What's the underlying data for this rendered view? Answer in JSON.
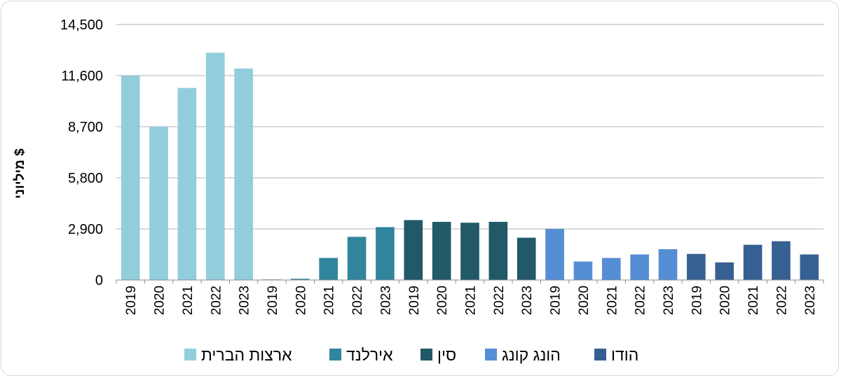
{
  "chart_data": {
    "type": "bar",
    "title": "",
    "xlabel": "",
    "ylabel": "מיליוני $",
    "ylim": [
      0,
      14500
    ],
    "yticks": [
      0,
      2900,
      5800,
      8700,
      11600,
      14500
    ],
    "ytick_labels": [
      "0",
      "2,900",
      "5,800",
      "8,700",
      "11,600",
      "14,500"
    ],
    "grid": true,
    "legend_position": "bottom",
    "categories": [
      "2019",
      "2020",
      "2021",
      "2022",
      "2023"
    ],
    "series": [
      {
        "name": "ארצות הברית",
        "color": "#92CDDC",
        "values": [
          11600,
          8700,
          10900,
          12900,
          12000
        ]
      },
      {
        "name": "אירלנד",
        "color": "#31859C",
        "values": [
          10,
          70,
          1250,
          2450,
          3000
        ]
      },
      {
        "name": "סין",
        "color": "#215968",
        "values": [
          3400,
          3300,
          3250,
          3300,
          2400
        ]
      },
      {
        "name": "הונג קונג",
        "color": "#558ED5",
        "values": [
          2900,
          1050,
          1250,
          1450,
          1750
        ]
      },
      {
        "name": "הודו",
        "color": "#376092",
        "values": [
          1480,
          1000,
          2000,
          2200,
          1450
        ]
      }
    ]
  }
}
